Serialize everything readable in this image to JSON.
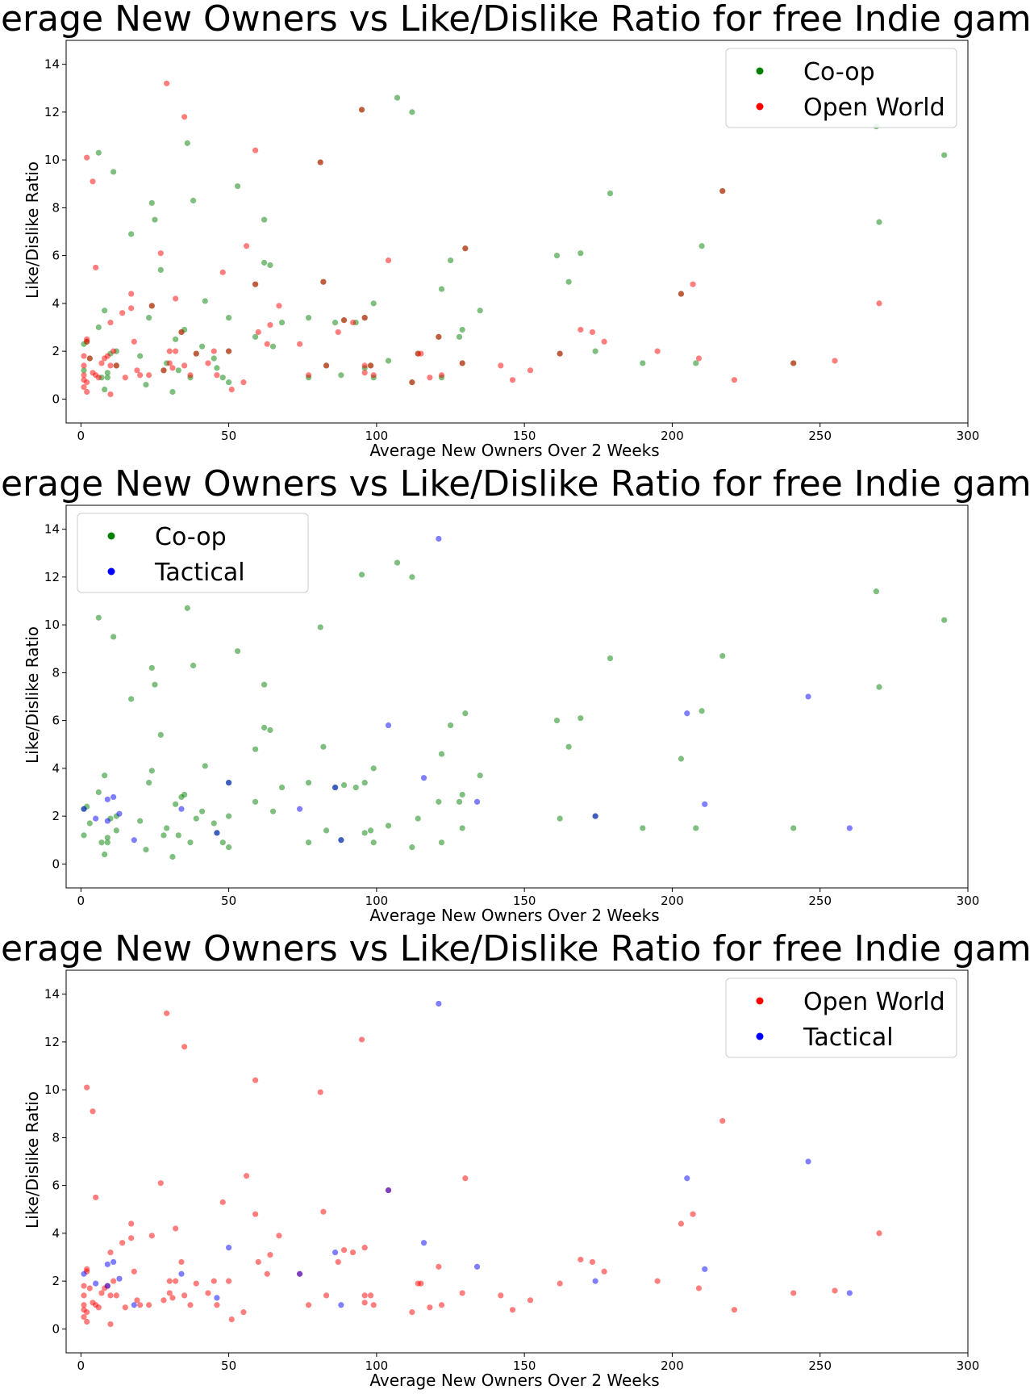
{
  "colors": {
    "Co-op": "#008000",
    "Open World": "#ff0000",
    "Tactical": "#0000ff"
  },
  "chart_data": [
    {
      "type": "scatter",
      "title": "Average New Owners vs Like/Dislike Ratio for free Indie games",
      "xlabel": "Average New Owners Over 2 Weeks",
      "ylabel": "Like/Dislike Ratio",
      "xlim": [
        -5,
        300
      ],
      "ylim": [
        -1,
        15
      ],
      "xticks": [
        0,
        50,
        100,
        150,
        200,
        250,
        300
      ],
      "yticks": [
        0,
        2,
        4,
        6,
        8,
        10,
        12,
        14
      ],
      "legend_position": "top-right",
      "series": [
        {
          "name": "Co-op",
          "color": "#008000",
          "points": [
            [
              1,
              1.2
            ],
            [
              1,
              2.3
            ],
            [
              2,
              2.4
            ],
            [
              3,
              1.7
            ],
            [
              6,
              10.3
            ],
            [
              6,
              3.0
            ],
            [
              7,
              0.9
            ],
            [
              8,
              3.7
            ],
            [
              8,
              0.4
            ],
            [
              9,
              1.1
            ],
            [
              9,
              0.9
            ],
            [
              10,
              1.9
            ],
            [
              11,
              9.5
            ],
            [
              12,
              2.0
            ],
            [
              12,
              1.4
            ],
            [
              17,
              6.9
            ],
            [
              20,
              1.8
            ],
            [
              22,
              0.6
            ],
            [
              23,
              3.4
            ],
            [
              24,
              8.2
            ],
            [
              24,
              3.9
            ],
            [
              25,
              7.5
            ],
            [
              27,
              5.4
            ],
            [
              28,
              1.2
            ],
            [
              29,
              1.5
            ],
            [
              31,
              0.3
            ],
            [
              32,
              2.5
            ],
            [
              33,
              1.2
            ],
            [
              34,
              2.8
            ],
            [
              35,
              2.9
            ],
            [
              36,
              10.7
            ],
            [
              37,
              0.9
            ],
            [
              38,
              8.3
            ],
            [
              39,
              1.9
            ],
            [
              41,
              2.2
            ],
            [
              42,
              4.1
            ],
            [
              45,
              1.7
            ],
            [
              46,
              1.3
            ],
            [
              48,
              0.9
            ],
            [
              50,
              0.7
            ],
            [
              50,
              3.4
            ],
            [
              50,
              2.0
            ],
            [
              53,
              8.9
            ],
            [
              59,
              4.8
            ],
            [
              59,
              2.6
            ],
            [
              62,
              7.5
            ],
            [
              62,
              5.7
            ],
            [
              64,
              5.6
            ],
            [
              65,
              2.2
            ],
            [
              68,
              3.2
            ],
            [
              77,
              3.4
            ],
            [
              77,
              0.9
            ],
            [
              81,
              9.9
            ],
            [
              82,
              4.9
            ],
            [
              83,
              1.4
            ],
            [
              86,
              3.2
            ],
            [
              88,
              1.0
            ],
            [
              89,
              3.3
            ],
            [
              93,
              3.2
            ],
            [
              95,
              12.1
            ],
            [
              96,
              3.4
            ],
            [
              96,
              1.3
            ],
            [
              98,
              1.4
            ],
            [
              99,
              0.9
            ],
            [
              99,
              4.0
            ],
            [
              104,
              1.6
            ],
            [
              107,
              12.6
            ],
            [
              112,
              12.0
            ],
            [
              112,
              0.7
            ],
            [
              114,
              1.9
            ],
            [
              121,
              2.6
            ],
            [
              122,
              4.6
            ],
            [
              122,
              0.9
            ],
            [
              125,
              5.8
            ],
            [
              128,
              2.6
            ],
            [
              129,
              2.9
            ],
            [
              129,
              1.5
            ],
            [
              130,
              6.3
            ],
            [
              135,
              3.7
            ],
            [
              161,
              6.0
            ],
            [
              162,
              1.9
            ],
            [
              165,
              4.9
            ],
            [
              169,
              6.1
            ],
            [
              174,
              2.0
            ],
            [
              179,
              8.6
            ],
            [
              190,
              1.5
            ],
            [
              203,
              4.4
            ],
            [
              208,
              1.5
            ],
            [
              210,
              6.4
            ],
            [
              217,
              8.7
            ],
            [
              241,
              1.5
            ],
            [
              269,
              11.4
            ],
            [
              270,
              7.4
            ],
            [
              292,
              10.2
            ]
          ]
        },
        {
          "name": "Open World",
          "color": "#ff0000",
          "points": [
            [
              1,
              1.0
            ],
            [
              1,
              1.4
            ],
            [
              1,
              1.8
            ],
            [
              1,
              0.8
            ],
            [
              1,
              0.5
            ],
            [
              2,
              0.7
            ],
            [
              2,
              0.3
            ],
            [
              2,
              2.4
            ],
            [
              2,
              10.1
            ],
            [
              2,
              2.5
            ],
            [
              3,
              1.7
            ],
            [
              4,
              1.1
            ],
            [
              4,
              9.1
            ],
            [
              5,
              5.5
            ],
            [
              5,
              1.0
            ],
            [
              6,
              0.9
            ],
            [
              7,
              1.5
            ],
            [
              8,
              1.7
            ],
            [
              9,
              1.8
            ],
            [
              10,
              1.4
            ],
            [
              10,
              3.2
            ],
            [
              10,
              0.2
            ],
            [
              11,
              2.0
            ],
            [
              12,
              1.4
            ],
            [
              14,
              3.6
            ],
            [
              15,
              0.9
            ],
            [
              17,
              4.4
            ],
            [
              17,
              3.8
            ],
            [
              18,
              2.4
            ],
            [
              19,
              1.2
            ],
            [
              20,
              1.0
            ],
            [
              23,
              1.0
            ],
            [
              24,
              3.9
            ],
            [
              27,
              6.1
            ],
            [
              28,
              1.2
            ],
            [
              29,
              13.2
            ],
            [
              30,
              2.0
            ],
            [
              30,
              1.5
            ],
            [
              31,
              1.3
            ],
            [
              32,
              4.2
            ],
            [
              32,
              2.0
            ],
            [
              34,
              2.8
            ],
            [
              35,
              11.8
            ],
            [
              35,
              1.4
            ],
            [
              37,
              1.0
            ],
            [
              39,
              1.9
            ],
            [
              43,
              1.5
            ],
            [
              45,
              2.0
            ],
            [
              46,
              1.0
            ],
            [
              48,
              5.3
            ],
            [
              50,
              2.0
            ],
            [
              51,
              0.4
            ],
            [
              55,
              0.7
            ],
            [
              56,
              6.4
            ],
            [
              59,
              4.8
            ],
            [
              59,
              10.4
            ],
            [
              60,
              2.8
            ],
            [
              63,
              2.3
            ],
            [
              64,
              3.1
            ],
            [
              67,
              3.9
            ],
            [
              74,
              2.3
            ],
            [
              77,
              1.0
            ],
            [
              81,
              9.9
            ],
            [
              82,
              4.9
            ],
            [
              83,
              1.4
            ],
            [
              87,
              2.8
            ],
            [
              89,
              3.3
            ],
            [
              92,
              3.2
            ],
            [
              95,
              12.1
            ],
            [
              96,
              3.4
            ],
            [
              96,
              1.4
            ],
            [
              96,
              1.1
            ],
            [
              98,
              1.4
            ],
            [
              99,
              1.0
            ],
            [
              104,
              5.8
            ],
            [
              112,
              0.7
            ],
            [
              114,
              1.9
            ],
            [
              115,
              1.9
            ],
            [
              118,
              0.9
            ],
            [
              121,
              2.6
            ],
            [
              122,
              1.0
            ],
            [
              129,
              1.5
            ],
            [
              130,
              6.3
            ],
            [
              142,
              1.4
            ],
            [
              146,
              0.8
            ],
            [
              152,
              1.2
            ],
            [
              162,
              1.9
            ],
            [
              169,
              2.9
            ],
            [
              173,
              2.8
            ],
            [
              177,
              2.4
            ],
            [
              195,
              2.0
            ],
            [
              203,
              4.4
            ],
            [
              207,
              4.8
            ],
            [
              209,
              1.7
            ],
            [
              217,
              8.7
            ],
            [
              221,
              0.8
            ],
            [
              241,
              1.5
            ],
            [
              255,
              1.6
            ],
            [
              270,
              4.0
            ]
          ]
        },
        {
          "name": "Tactical",
          "color": "#0000ff",
          "points": [
            [
              1,
              2.3
            ],
            [
              5,
              1.9
            ],
            [
              9,
              1.8
            ],
            [
              9,
              2.7
            ],
            [
              11,
              2.8
            ],
            [
              13,
              2.1
            ],
            [
              18,
              1.0
            ],
            [
              34,
              2.3
            ],
            [
              46,
              1.3
            ],
            [
              50,
              3.4
            ],
            [
              74,
              2.3
            ],
            [
              86,
              3.2
            ],
            [
              88,
              1.0
            ],
            [
              104,
              5.8
            ],
            [
              116,
              3.6
            ],
            [
              121,
              13.6
            ],
            [
              134,
              2.6
            ],
            [
              174,
              2.0
            ],
            [
              205,
              6.3
            ],
            [
              211,
              2.5
            ],
            [
              246,
              7.0
            ],
            [
              260,
              1.5
            ]
          ]
        }
      ]
    }
  ],
  "charts": [
    {
      "title": "Average New Owners vs Like/Dislike Ratio for free Indie games",
      "xlabel": "Average New Owners Over 2 Weeks",
      "ylabel": "Like/Dislike Ratio",
      "legend_position": "top-right",
      "series_names": [
        "Co-op",
        "Open World"
      ]
    },
    {
      "title": "Average New Owners vs Like/Dislike Ratio for free Indie games",
      "xlabel": "Average New Owners Over 2 Weeks",
      "ylabel": "Like/Dislike Ratio",
      "legend_position": "top-left",
      "series_names": [
        "Co-op",
        "Tactical"
      ]
    },
    {
      "title": "Average New Owners vs Like/Dislike Ratio for free Indie games",
      "xlabel": "Average New Owners Over 2 Weeks",
      "ylabel": "Like/Dislike Ratio",
      "legend_position": "top-right",
      "series_names": [
        "Open World",
        "Tactical"
      ]
    }
  ]
}
